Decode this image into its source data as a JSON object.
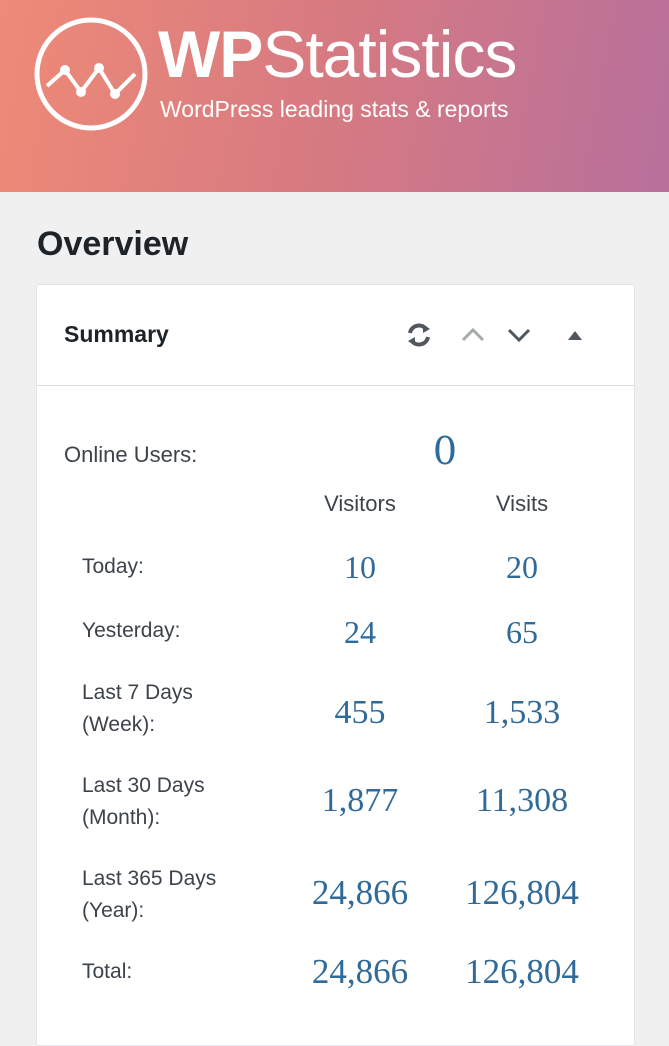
{
  "brand": {
    "title_wp": "WP",
    "title_rest": "Statistics",
    "tagline": "WordPress leading stats & reports"
  },
  "page": {
    "title": "Overview"
  },
  "summary": {
    "title": "Summary",
    "online_label": "Online Users:",
    "online_value": "0",
    "col_visitors": "Visitors",
    "col_visits": "Visits",
    "rows": [
      {
        "line1": "Today:",
        "line2": "",
        "visitors": "10",
        "visits": "20"
      },
      {
        "line1": "Yesterday:",
        "line2": "",
        "visitors": "24",
        "visits": "65"
      },
      {
        "line1": "Last 7 Days",
        "line2": "(Week):",
        "visitors": "455",
        "visits": "1,533"
      },
      {
        "line1": "Last 30 Days",
        "line2": "(Month):",
        "visitors": "1,877",
        "visits": "11,308"
      },
      {
        "line1": "Last 365 Days",
        "line2": "(Year):",
        "visitors": "24,866",
        "visits": "126,804"
      },
      {
        "line1": "Total:",
        "line2": "",
        "visitors": "24,866",
        "visits": "126,804"
      }
    ]
  },
  "icons": {
    "logo": "wp-statistics-logo-icon",
    "refresh": "refresh-icon",
    "move_up": "chevron-up-icon",
    "move_down": "chevron-down-icon",
    "collapse": "triangle-up-icon"
  },
  "colors": {
    "banner_start": "#ee8a77",
    "banner_end": "#b8709c",
    "value_blue": "#2f6a99"
  }
}
